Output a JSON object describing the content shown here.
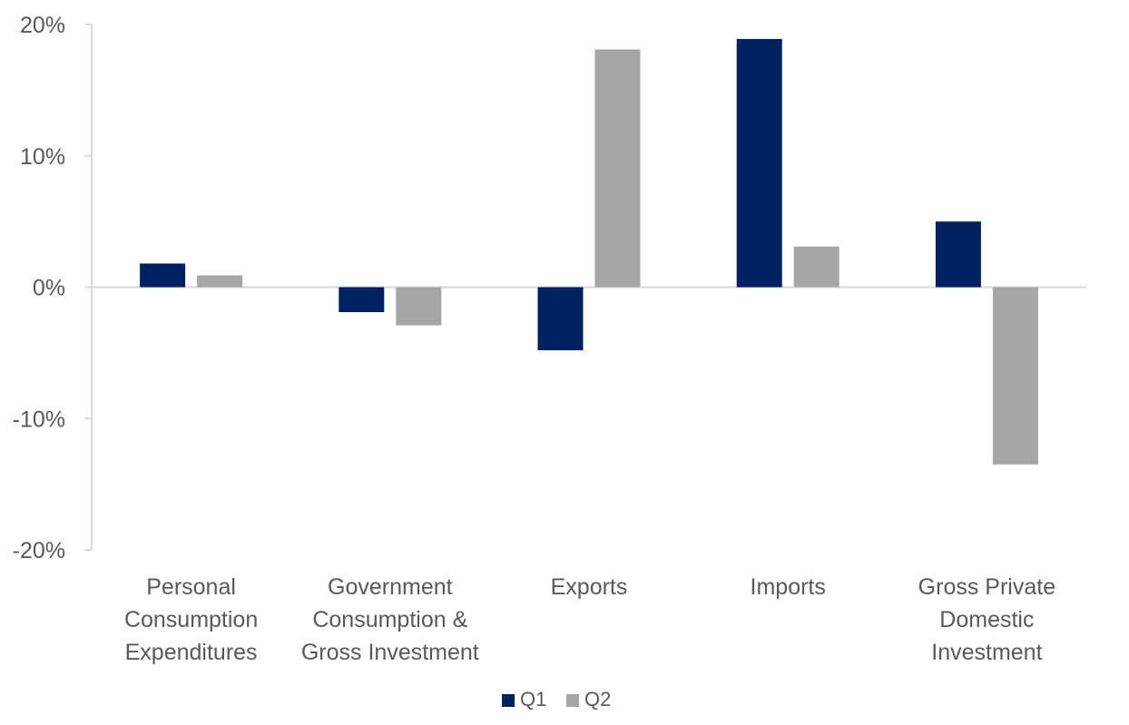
{
  "chart_data": {
    "type": "bar",
    "categories": [
      [
        "Personal",
        "Consumption",
        "Expenditures"
      ],
      [
        "Government",
        "Consumption &",
        "Gross Investment"
      ],
      [
        "Exports"
      ],
      [
        "Imports"
      ],
      [
        "Gross Private",
        "Domestic",
        "Investment"
      ]
    ],
    "series": [
      {
        "name": "Q1",
        "color": "#002060",
        "values": [
          1.8,
          -1.9,
          -4.8,
          18.9,
          5.0
        ]
      },
      {
        "name": "Q2",
        "color": "#A6A6A6",
        "values": [
          0.9,
          -2.9,
          18.1,
          3.1,
          -13.5
        ]
      }
    ],
    "ylim": [
      -20,
      20
    ],
    "yticks": [
      20,
      10,
      0,
      -10,
      -20
    ],
    "ytick_labels": [
      "20%",
      "10%",
      "0%",
      "-10%",
      "-20%"
    ],
    "title": "",
    "xlabel": "",
    "ylabel": "",
    "grid": false,
    "legend_position": "bottom-center",
    "axis_color": "#D9D9D9",
    "text_color": "#595959"
  }
}
